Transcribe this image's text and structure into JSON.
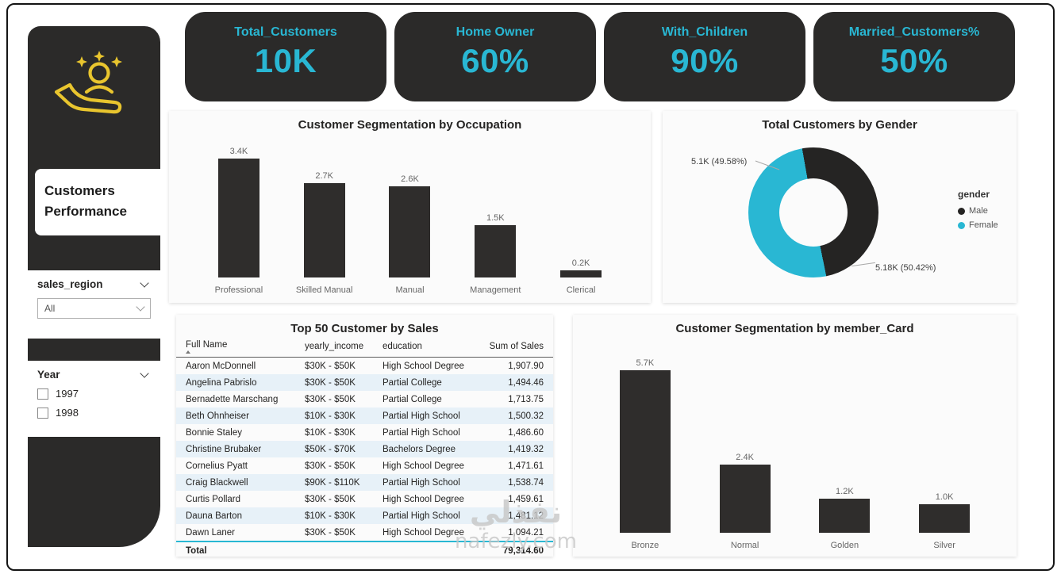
{
  "sidebar": {
    "title_line1": "Customers",
    "title_line2": "Performance",
    "sales_region": {
      "label": "sales_region",
      "value": "All"
    },
    "year": {
      "label": "Year",
      "options": [
        "1997",
        "1998"
      ]
    }
  },
  "kpis": [
    {
      "label": "Total_Customers",
      "value": "10K"
    },
    {
      "label": "Home Owner",
      "value": "60%"
    },
    {
      "label": "With_Children",
      "value": "90%"
    },
    {
      "label": "Married_Customers%",
      "value": "50%"
    }
  ],
  "colors": {
    "accent_cyan": "#29b7d3",
    "dark": "#2b2a29",
    "bar": "#2f2d2c"
  },
  "chart_data": [
    {
      "type": "bar",
      "title": "Customer Segmentation by Occupation",
      "categories": [
        "Professional",
        "Skilled Manual",
        "Manual",
        "Management",
        "Clerical"
      ],
      "values": [
        3400,
        2700,
        2600,
        1500,
        200
      ],
      "value_labels": [
        "3.4K",
        "2.7K",
        "2.6K",
        "1.5K",
        "0.2K"
      ],
      "ylim": [
        0,
        3400
      ],
      "grid": false
    },
    {
      "type": "pie",
      "title": "Total Customers by Gender",
      "legend_title": "gender",
      "legend_position": "right",
      "slices": [
        {
          "name": "Male",
          "value": 5100,
          "label": "5.1K (49.58%)",
          "color": "#252423"
        },
        {
          "name": "Female",
          "value": 5180,
          "label": "5.18K (50.42%)",
          "color": "#29b7d3"
        }
      ]
    },
    {
      "type": "table",
      "title": "Top 50 Customer by Sales",
      "columns": [
        "Full Name",
        "yearly_income",
        "education",
        "Sum of Sales"
      ],
      "rows": [
        [
          "Aaron McDonnell",
          "$30K - $50K",
          "High School Degree",
          "1,907.90"
        ],
        [
          "Angelina Pabrislo",
          "$30K - $50K",
          "Partial College",
          "1,494.46"
        ],
        [
          "Bernadette Marschang",
          "$30K - $50K",
          "Partial College",
          "1,713.75"
        ],
        [
          "Beth Ohnheiser",
          "$10K - $30K",
          "Partial High School",
          "1,500.32"
        ],
        [
          "Bonnie Staley",
          "$10K - $30K",
          "Partial High School",
          "1,486.60"
        ],
        [
          "Christine Brubaker",
          "$50K - $70K",
          "Bachelors Degree",
          "1,419.32"
        ],
        [
          "Cornelius Pyatt",
          "$30K - $50K",
          "High School Degree",
          "1,471.61"
        ],
        [
          "Craig Blackwell",
          "$90K - $110K",
          "Partial High School",
          "1,538.74"
        ],
        [
          "Curtis Pollard",
          "$30K - $50K",
          "High School Degree",
          "1,459.61"
        ],
        [
          "Dauna Barton",
          "$10K - $30K",
          "Partial High School",
          "1,481.12"
        ],
        [
          "Dawn Laner",
          "$30K - $50K",
          "High School Degree",
          "1,094.21"
        ]
      ],
      "total": {
        "label": "Total",
        "value": "79,314.60"
      }
    },
    {
      "type": "bar",
      "title": "Customer Segmentation by member_Card",
      "categories": [
        "Bronze",
        "Normal",
        "Golden",
        "Silver"
      ],
      "values": [
        5700,
        2400,
        1200,
        1000
      ],
      "value_labels": [
        "5.7K",
        "2.4K",
        "1.2K",
        "1.0K"
      ],
      "ylim": [
        0,
        5700
      ],
      "grid": false
    }
  ],
  "watermark": {
    "arabic": "نفذلي",
    "latin": "nafezly.com"
  }
}
